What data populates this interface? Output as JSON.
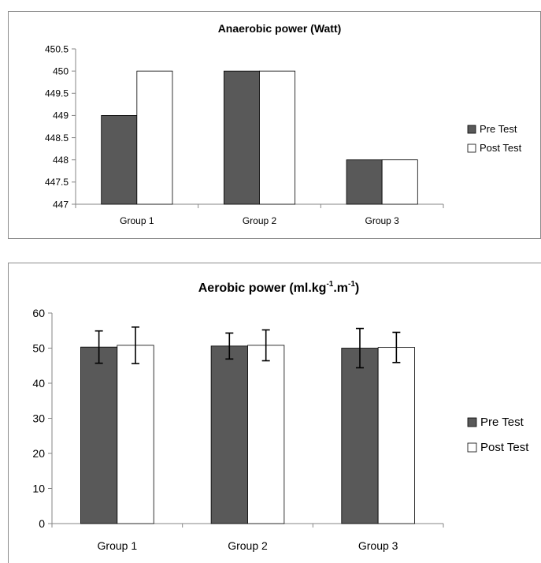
{
  "chart_data": [
    {
      "type": "bar",
      "title": "Anaerobic power (Watt)",
      "xlabel": "",
      "ylabel": "",
      "categories": [
        "Group 1",
        "Group 2",
        "Group 3"
      ],
      "ylim": [
        447,
        450.5
      ],
      "yticks": [
        "447",
        "447.5",
        "448",
        "448.5",
        "449",
        "449.5",
        "450",
        "450.5"
      ],
      "series": [
        {
          "name": "Pre Test",
          "values": [
            449,
            450,
            448
          ],
          "color": "#595959"
        },
        {
          "name": "Post Test",
          "values": [
            450,
            450,
            448
          ],
          "color": "#ffffff"
        }
      ],
      "error_bars": false,
      "legend": "right",
      "grid": false
    },
    {
      "type": "bar",
      "title_main": "Aerobic power (ml.kg",
      "title_sup1": "-1",
      "title_mid": ".m",
      "title_sup2": "-1",
      "title_end": ")",
      "xlabel": "",
      "ylabel": "",
      "categories": [
        "Group 1",
        "Group 2",
        "Group 3"
      ],
      "ylim": [
        0,
        60
      ],
      "yticks": [
        "0",
        "10",
        "20",
        "30",
        "40",
        "50",
        "60"
      ],
      "series": [
        {
          "name": "Pre Test",
          "values": [
            50.3,
            50.6,
            50.0
          ],
          "errors": [
            4.6,
            3.7,
            5.6
          ],
          "color": "#595959"
        },
        {
          "name": "Post Test",
          "values": [
            50.8,
            50.8,
            50.2
          ],
          "errors": [
            5.2,
            4.4,
            4.3
          ],
          "color": "#ffffff"
        }
      ],
      "error_bars": true,
      "legend": "right",
      "grid": false
    }
  ]
}
